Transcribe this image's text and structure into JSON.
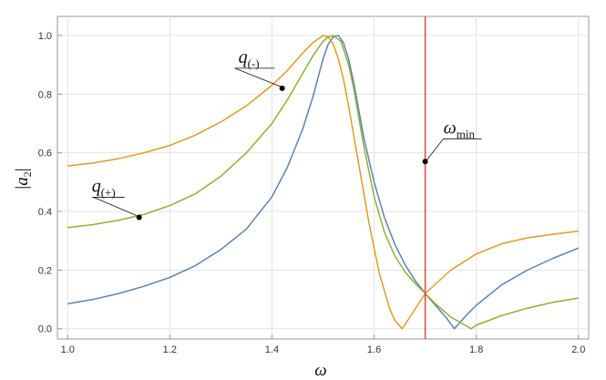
{
  "chart_data": {
    "type": "line",
    "xlabel": "ω",
    "ylabel": "|a2|",
    "ylabel_parts": {
      "left_bar": "|",
      "symbol": "a",
      "subscript": "2",
      "right_bar": "|"
    },
    "xlim": [
      0.98,
      2.02
    ],
    "ylim": [
      -0.035,
      1.065
    ],
    "xticks": [
      1.0,
      1.2,
      1.4,
      1.6,
      1.8,
      2.0
    ],
    "xtick_labels": [
      "1.0",
      "1.2",
      "1.4",
      "1.6",
      "1.8",
      "2.0"
    ],
    "yticks": [
      0.0,
      0.2,
      0.4,
      0.6,
      0.8,
      1.0
    ],
    "ytick_labels": [
      "0.0",
      "0.2",
      "0.4",
      "0.6",
      "0.8",
      "1.0"
    ],
    "grid": true,
    "series": [
      {
        "color": "#5e81b5",
        "x": [
          1.0,
          1.05,
          1.1,
          1.15,
          1.2,
          1.25,
          1.3,
          1.35,
          1.4,
          1.43,
          1.46,
          1.48,
          1.5,
          1.51,
          1.52,
          1.53,
          1.54,
          1.55,
          1.56,
          1.58,
          1.6,
          1.62,
          1.64,
          1.66,
          1.68,
          1.7,
          1.72,
          1.74,
          1.757,
          1.78,
          1.8,
          1.85,
          1.9,
          1.95,
          2.0
        ],
        "y": [
          0.085,
          0.1,
          0.12,
          0.145,
          0.175,
          0.215,
          0.27,
          0.34,
          0.45,
          0.55,
          0.68,
          0.79,
          0.92,
          0.97,
          0.995,
          1.0,
          0.975,
          0.92,
          0.84,
          0.65,
          0.5,
          0.38,
          0.29,
          0.22,
          0.165,
          0.12,
          0.08,
          0.04,
          0.0,
          0.045,
          0.08,
          0.15,
          0.2,
          0.24,
          0.275
        ]
      },
      {
        "color": "#8fb131",
        "x": [
          1.0,
          1.05,
          1.1,
          1.15,
          1.2,
          1.25,
          1.3,
          1.35,
          1.4,
          1.43,
          1.46,
          1.48,
          1.5,
          1.51,
          1.52,
          1.535,
          1.55,
          1.56,
          1.58,
          1.6,
          1.62,
          1.64,
          1.66,
          1.68,
          1.7,
          1.72,
          1.75,
          1.78,
          1.79,
          1.8,
          1.85,
          1.9,
          1.95,
          2.0
        ],
        "y": [
          0.345,
          0.355,
          0.37,
          0.39,
          0.42,
          0.46,
          0.52,
          0.6,
          0.7,
          0.78,
          0.87,
          0.93,
          0.98,
          0.995,
          1.0,
          0.98,
          0.9,
          0.82,
          0.62,
          0.45,
          0.33,
          0.25,
          0.195,
          0.155,
          0.12,
          0.085,
          0.04,
          0.01,
          0.0,
          0.012,
          0.045,
          0.07,
          0.09,
          0.105
        ]
      },
      {
        "color": "#e19c24",
        "x": [
          1.0,
          1.05,
          1.1,
          1.15,
          1.2,
          1.25,
          1.3,
          1.35,
          1.4,
          1.43,
          1.46,
          1.48,
          1.5,
          1.51,
          1.52,
          1.53,
          1.54,
          1.55,
          1.57,
          1.59,
          1.61,
          1.63,
          1.64,
          1.655,
          1.67,
          1.7,
          1.75,
          1.8,
          1.85,
          1.9,
          1.95,
          2.0
        ],
        "y": [
          0.555,
          0.565,
          0.58,
          0.6,
          0.625,
          0.66,
          0.705,
          0.76,
          0.83,
          0.88,
          0.94,
          0.975,
          1.0,
          0.995,
          0.97,
          0.92,
          0.85,
          0.76,
          0.56,
          0.36,
          0.19,
          0.07,
          0.03,
          0.0,
          0.04,
          0.12,
          0.2,
          0.255,
          0.29,
          0.31,
          0.322,
          0.333
        ]
      }
    ],
    "vline": {
      "x": 1.7,
      "color": "#e8413c"
    },
    "annotations": [
      {
        "symbol": "q",
        "subscript": "(-)",
        "point": [
          1.42,
          0.82
        ]
      },
      {
        "symbol": "q",
        "subscript": "(+)",
        "point": [
          1.14,
          0.38
        ]
      },
      {
        "symbol": "ω",
        "subscript": "min",
        "point": [
          1.7,
          0.57
        ]
      }
    ]
  }
}
